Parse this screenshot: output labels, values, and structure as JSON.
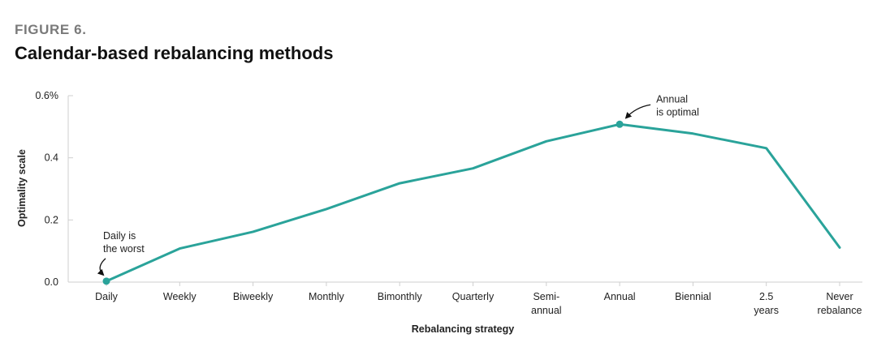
{
  "figure": {
    "label": "FIGURE 6.",
    "title": "Calendar-based rebalancing methods"
  },
  "chart_data": {
    "type": "line",
    "title": "Calendar-based rebalancing methods",
    "xlabel": "Rebalancing strategy",
    "ylabel": "Optimality scale",
    "categories": [
      "Daily",
      "Weekly",
      "Biweekly",
      "Monthly",
      "Bimonthly",
      "Quarterly",
      "Semi-annual",
      "Annual",
      "Biennial",
      "2.5 years",
      "Never rebalance"
    ],
    "category_lines": [
      [
        "Daily"
      ],
      [
        "Weekly"
      ],
      [
        "Biweekly"
      ],
      [
        "Monthly"
      ],
      [
        "Bimonthly"
      ],
      [
        "Quarterly"
      ],
      [
        "Semi-",
        "annual"
      ],
      [
        "Annual"
      ],
      [
        "Biennial"
      ],
      [
        "2.5",
        "years"
      ],
      [
        "Never",
        "rebalance"
      ]
    ],
    "series": [
      {
        "values": [
          0.003,
          0.108,
          0.162,
          0.235,
          0.318,
          0.366,
          0.453,
          0.508,
          0.478,
          0.431,
          0.111
        ]
      }
    ],
    "ylim": [
      0,
      0.6
    ],
    "yticks": [
      {
        "value": 0,
        "label": "0.0"
      },
      {
        "value": 0.2,
        "label": "0.2"
      },
      {
        "value": 0.4,
        "label": "0.4"
      },
      {
        "value": 0.6,
        "label": "0.6%"
      }
    ],
    "line_color": "#2aa39a",
    "grid": false,
    "legend": "none",
    "annotations": [
      {
        "category": "Daily",
        "lines": [
          "Daily is",
          "the worst"
        ]
      },
      {
        "category": "Annual",
        "lines": [
          "Annual",
          "is optimal"
        ]
      }
    ]
  }
}
